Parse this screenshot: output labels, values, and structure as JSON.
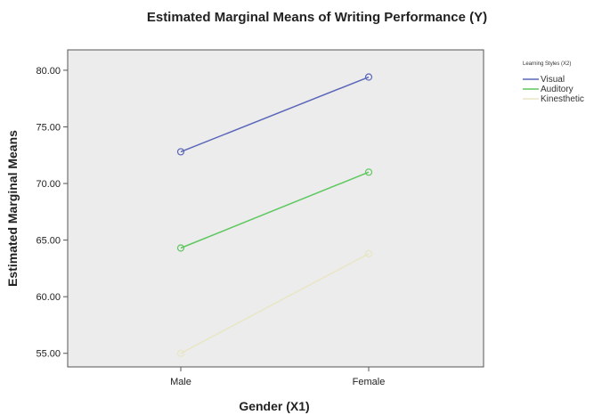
{
  "chart_data": {
    "type": "line",
    "title": "Estimated Marginal Means of Writing Performance (Y)",
    "xlabel": "Gender (X1)",
    "ylabel": "Estimated Marginal Means",
    "categories": [
      "Male",
      "Female"
    ],
    "ylim": [
      53.8,
      81.8
    ],
    "yticks": [
      "55.00",
      "60.00",
      "65.00",
      "70.00",
      "75.00",
      "80.00"
    ],
    "legend_title": "Learning Styles (X2)",
    "legend_position": "right",
    "grid": false,
    "series": [
      {
        "name": "Visual",
        "values": [
          72.8,
          79.4
        ],
        "color": "#5a66b8"
      },
      {
        "name": "Auditory",
        "values": [
          64.3,
          71.0
        ],
        "color": "#5fc75f"
      },
      {
        "name": "Kinesthetic",
        "values": [
          55.0,
          63.8
        ],
        "color": "#e8e6c4"
      }
    ]
  }
}
